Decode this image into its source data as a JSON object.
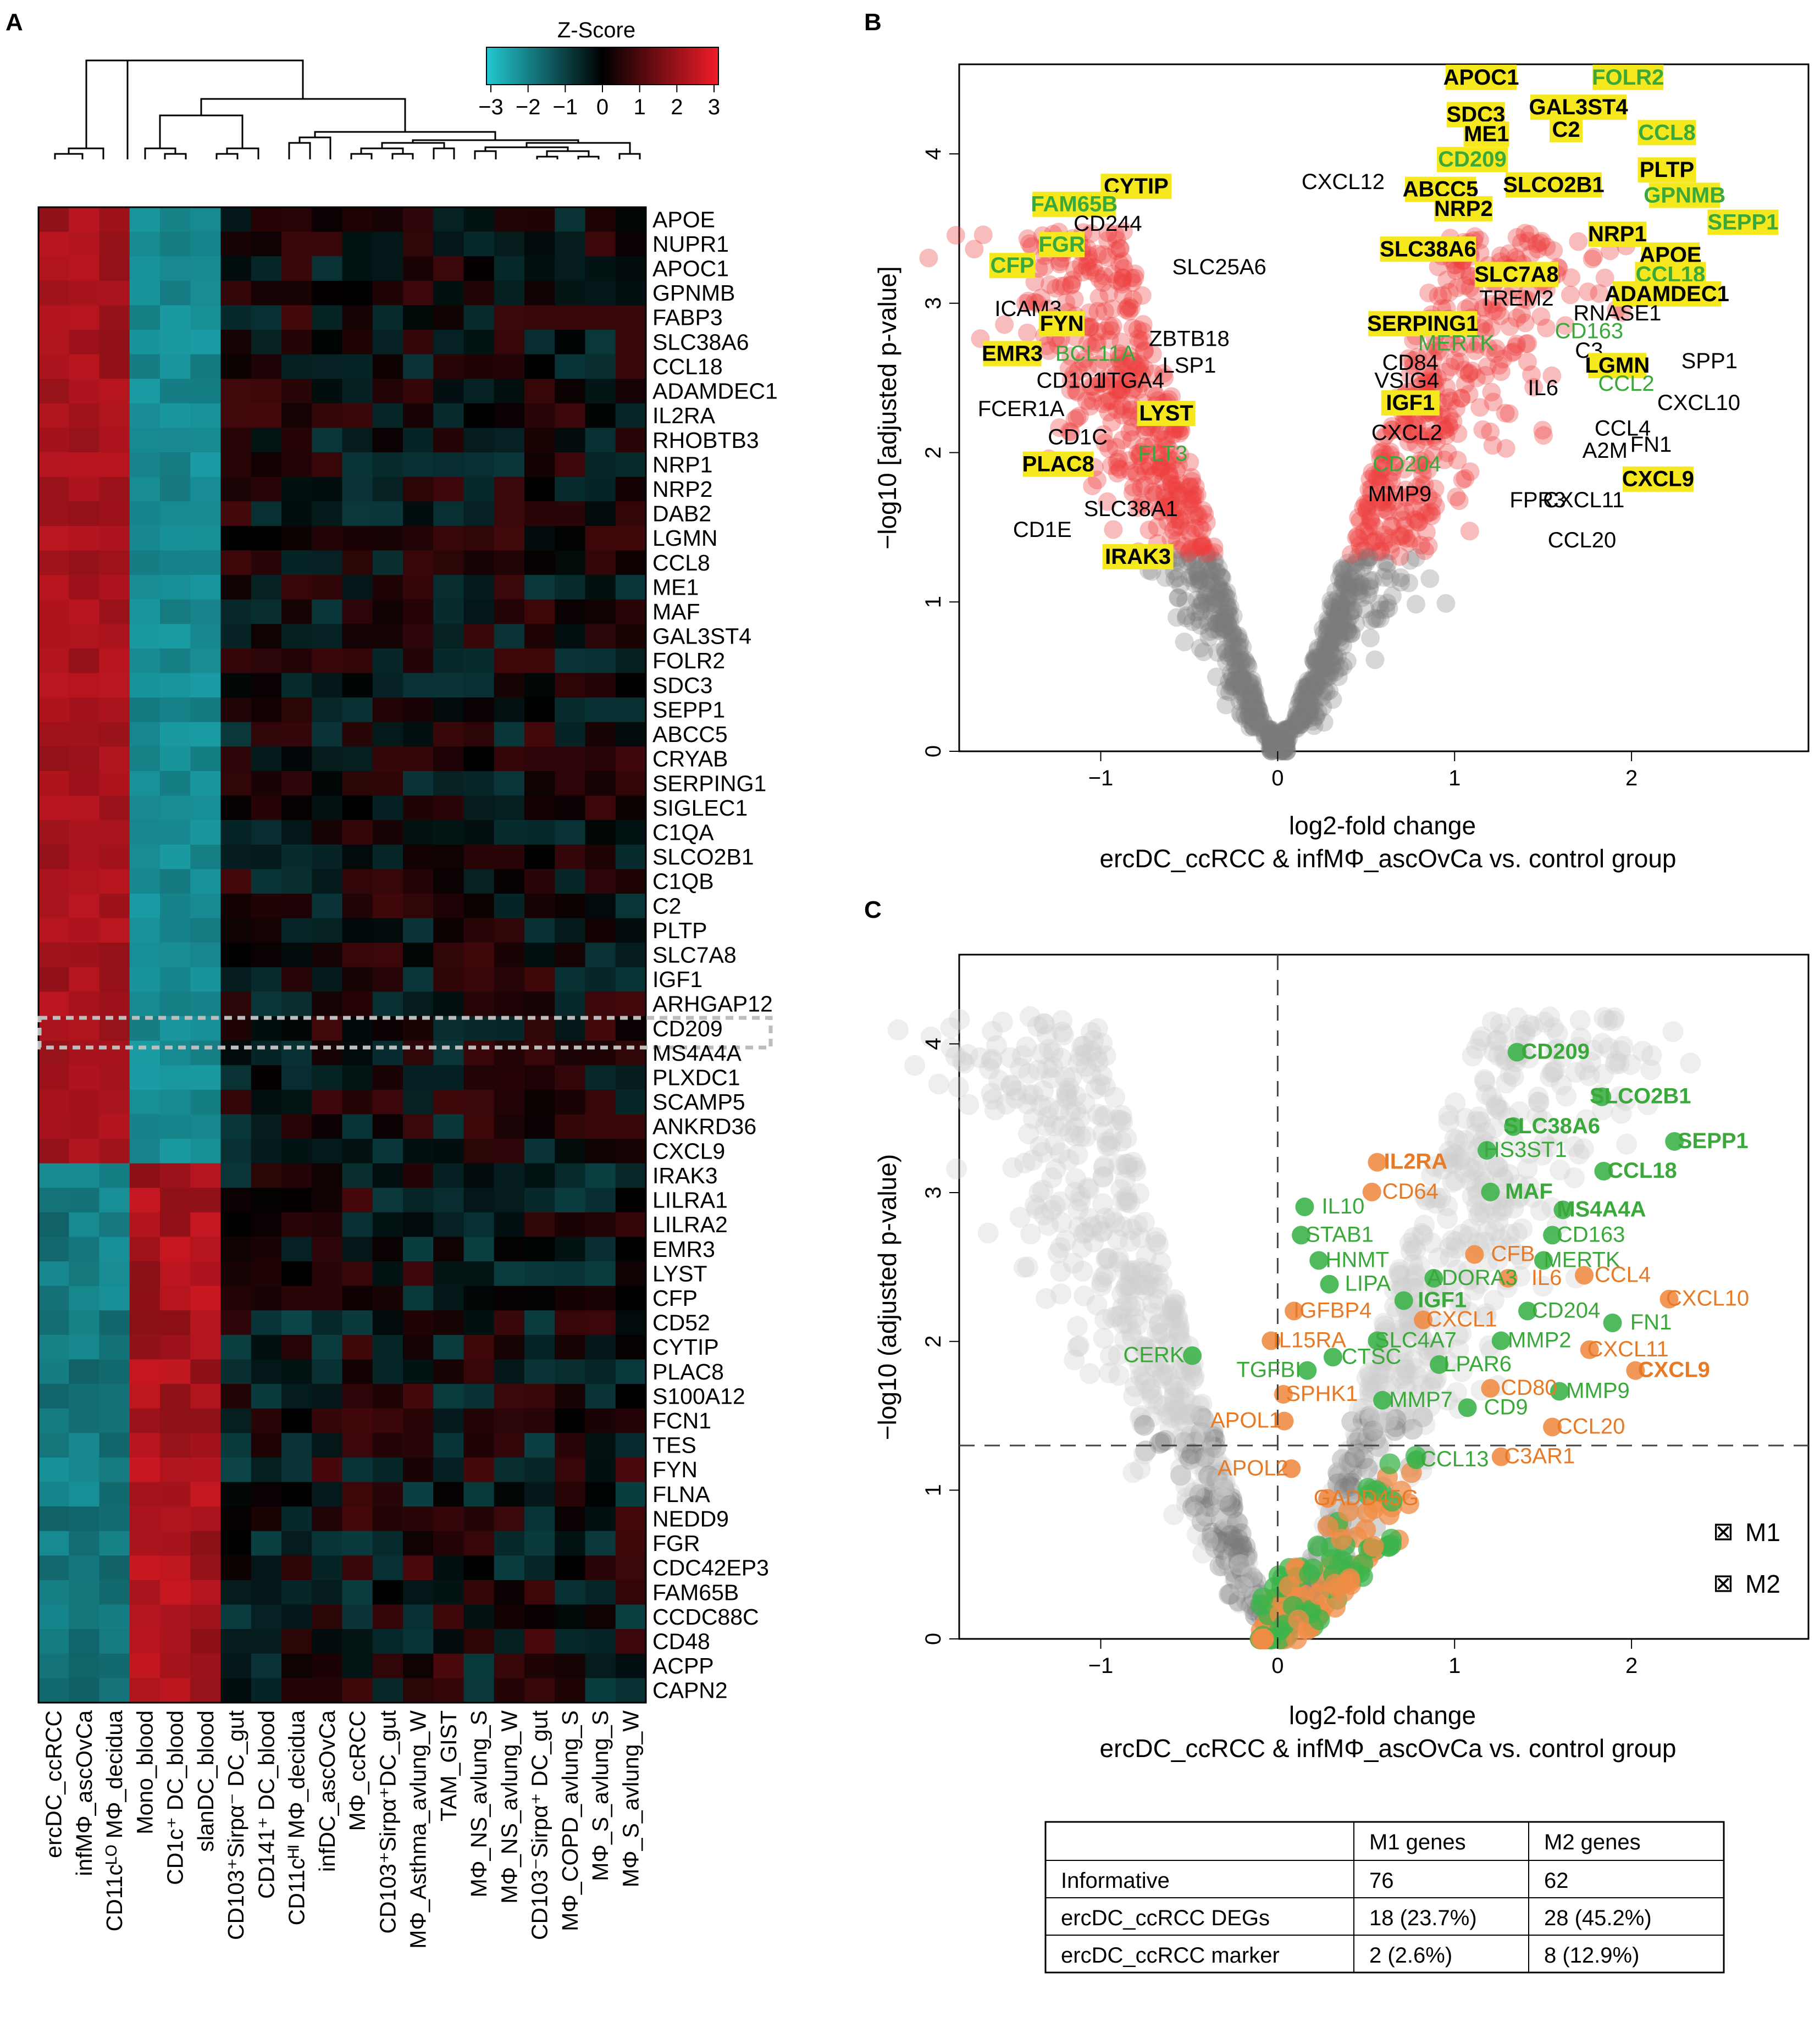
{
  "panels": {
    "a": "A",
    "b": "B",
    "c": "C"
  },
  "colors": {
    "low": "#22c8d2",
    "mid": "#000000",
    "high": "#f01c28",
    "sig": "#ee4040",
    "nonsig": "#7a7a7a",
    "m1": "#f08c46",
    "m2": "#3cb44b",
    "yellow": "#f5e81e",
    "green_text": "#3aa83a",
    "orange_text": "#e87a26"
  },
  "chart_data": [
    {
      "type": "heatmap",
      "title": "Z-Score",
      "colorbar_ticks": [
        "−3",
        "−2",
        "−1",
        "0",
        "1",
        "2",
        "3"
      ],
      "zlim": [
        -3,
        3
      ],
      "rows": [
        "APOE",
        "NUPR1",
        "APOC1",
        "GPNMB",
        "FABP3",
        "SLC38A6",
        "CCL18",
        "ADAMDEC1",
        "IL2RA",
        "RHOBTB3",
        "NRP1",
        "NRP2",
        "DAB2",
        "LGMN",
        "CCL8",
        "ME1",
        "MAF",
        "GAL3ST4",
        "FOLR2",
        "SDC3",
        "SEPP1",
        "ABCC5",
        "CRYAB",
        "SERPING1",
        "SIGLEC1",
        "C1QA",
        "SLCO2B1",
        "C1QB",
        "C2",
        "PLTP",
        "SLC7A8",
        "IGF1",
        "ARHGAP12",
        "CD209",
        "MS4A4A",
        "PLXDC1",
        "SCAMP5",
        "ANKRD36",
        "CXCL9",
        "IRAK3",
        "LILRA1",
        "LILRA2",
        "EMR3",
        "LYST",
        "CFP",
        "CD52",
        "CYTIP",
        "PLAC8",
        "S100A12",
        "FCN1",
        "TES",
        "FYN",
        "FLNA",
        "NEDD9",
        "FGR",
        "CDC42EP3",
        "FAM65B",
        "CCDC88C",
        "CD48",
        "ACPP",
        "CAPN2"
      ],
      "columns": [
        "ercDC_ccRCC",
        "infMΦ_ascOvCa",
        "CD11cᴸᴼ MΦ_decidua",
        "Mono_blood",
        "CD1c⁺ DC_blood",
        "slanDC_blood",
        "CD103⁺Sirpα⁻ DC_gut",
        "CD141⁺ DC_blood",
        "CD11cᴴᴵ MΦ_decidua",
        "infDC_ascOvCa",
        "MΦ_ccRCC",
        "CD103⁺Sirpα⁺DC_gut",
        "MΦ_Asthma_avlung_W",
        "TAM_GIST",
        "MΦ_NS_avlung_S",
        "MΦ_NS_avlung_W",
        "CD103⁻Sirpα⁺ DC_gut",
        "MΦ_COPD_avlung_S",
        "MΦ_S_avlung_S",
        "MΦ_S_avlung_W"
      ],
      "highlighted_row": "CD209",
      "row_groups": [
        {
          "rows": [
            "APOE",
            "CXCL9"
          ],
          "pattern": "high in first three columns"
        },
        {
          "rows": [
            "IRAK3",
            "CAPN2"
          ],
          "pattern": "high in monocyte/DC blood columns"
        }
      ]
    },
    {
      "type": "scatter",
      "title": "",
      "xlabel": "log2-fold change",
      "xlabel2": "ercDC_ccRCC & infMΦ_ascOvCa vs. control group",
      "ylabel": "−log10 [adjusted p-value]",
      "xlim": [
        -1.8,
        3.0
      ],
      "ylim": [
        0,
        4.6
      ],
      "xticks": [
        "−1",
        "0",
        "1",
        "2"
      ],
      "yticks": [
        "0",
        "1",
        "2",
        "3",
        "4"
      ],
      "significance_threshold": 1.3,
      "labels": [
        {
          "text": "APOC1",
          "x": 1.15,
          "y": 4.45,
          "style": "yellow"
        },
        {
          "text": "FOLR2",
          "x": 1.98,
          "y": 4.45,
          "style": "yellow-green"
        },
        {
          "text": "SDC3",
          "x": 1.12,
          "y": 4.2,
          "style": "yellow"
        },
        {
          "text": "GAL3ST4",
          "x": 1.7,
          "y": 4.25,
          "style": "yellow"
        },
        {
          "text": "ME1",
          "x": 1.18,
          "y": 4.07,
          "style": "yellow"
        },
        {
          "text": "C2",
          "x": 1.63,
          "y": 4.1,
          "style": "yellow"
        },
        {
          "text": "CCL8",
          "x": 2.2,
          "y": 4.08,
          "style": "yellow-green"
        },
        {
          "text": "CD209",
          "x": 1.1,
          "y": 3.9,
          "style": "yellow-green"
        },
        {
          "text": "PLTP",
          "x": 2.2,
          "y": 3.83,
          "style": "yellow"
        },
        {
          "text": "CXCL12",
          "x": 0.37,
          "y": 3.75,
          "style": "plain"
        },
        {
          "text": "ABCC5",
          "x": 0.92,
          "y": 3.7,
          "style": "yellow"
        },
        {
          "text": "SLCO2B1",
          "x": 1.56,
          "y": 3.73,
          "style": "yellow"
        },
        {
          "text": "GPNMB",
          "x": 2.3,
          "y": 3.66,
          "style": "yellow-green"
        },
        {
          "text": "NRP2",
          "x": 1.05,
          "y": 3.57,
          "style": "yellow"
        },
        {
          "text": "SEPP1",
          "x": 2.63,
          "y": 3.48,
          "style": "yellow-green"
        },
        {
          "text": "NRP1",
          "x": 1.92,
          "y": 3.4,
          "style": "yellow"
        },
        {
          "text": "SLC38A6",
          "x": 0.85,
          "y": 3.3,
          "style": "yellow"
        },
        {
          "text": "APOE",
          "x": 2.22,
          "y": 3.26,
          "style": "yellow"
        },
        {
          "text": "CCL18",
          "x": 2.22,
          "y": 3.13,
          "style": "yellow-green"
        },
        {
          "text": "SLC7A8",
          "x": 1.35,
          "y": 3.13,
          "style": "yellow"
        },
        {
          "text": "ADAMDEC1",
          "x": 2.2,
          "y": 3.0,
          "style": "yellow"
        },
        {
          "text": "TREM2",
          "x": 1.35,
          "y": 2.97,
          "style": "plain"
        },
        {
          "text": "RNASE1",
          "x": 1.92,
          "y": 2.87,
          "style": "plain"
        },
        {
          "text": "SERPING1",
          "x": 0.82,
          "y": 2.8,
          "style": "yellow"
        },
        {
          "text": "CD163",
          "x": 1.76,
          "y": 2.75,
          "style": "green"
        },
        {
          "text": "MERTK",
          "x": 1.01,
          "y": 2.67,
          "style": "green"
        },
        {
          "text": "C3",
          "x": 1.76,
          "y": 2.62,
          "style": "plain"
        },
        {
          "text": "CD84",
          "x": 0.75,
          "y": 2.54,
          "style": "plain"
        },
        {
          "text": "LGMN",
          "x": 1.92,
          "y": 2.52,
          "style": "yellow"
        },
        {
          "text": "SPP1",
          "x": 2.44,
          "y": 2.55,
          "style": "plain"
        },
        {
          "text": "VSIG4",
          "x": 0.73,
          "y": 2.42,
          "style": "plain"
        },
        {
          "text": "CCL2",
          "x": 1.97,
          "y": 2.4,
          "style": "green"
        },
        {
          "text": "IL6",
          "x": 1.5,
          "y": 2.37,
          "style": "plain"
        },
        {
          "text": "IGF1",
          "x": 0.75,
          "y": 2.27,
          "style": "yellow"
        },
        {
          "text": "CXCL10",
          "x": 2.38,
          "y": 2.27,
          "style": "plain"
        },
        {
          "text": "CXCL2",
          "x": 0.73,
          "y": 2.07,
          "style": "plain"
        },
        {
          "text": "CCL4",
          "x": 1.95,
          "y": 2.1,
          "style": "plain"
        },
        {
          "text": "FN1",
          "x": 2.11,
          "y": 1.99,
          "style": "plain"
        },
        {
          "text": "A2M",
          "x": 1.85,
          "y": 1.95,
          "style": "plain"
        },
        {
          "text": "CD204",
          "x": 0.73,
          "y": 1.86,
          "style": "green"
        },
        {
          "text": "MMP9",
          "x": 0.69,
          "y": 1.66,
          "style": "plain"
        },
        {
          "text": "FPR3",
          "x": 1.47,
          "y": 1.62,
          "style": "plain"
        },
        {
          "text": "CXCL11",
          "x": 1.73,
          "y": 1.62,
          "style": "plain"
        },
        {
          "text": "CXCL9",
          "x": 2.15,
          "y": 1.76,
          "style": "yellow"
        },
        {
          "text": "CCL20",
          "x": 1.72,
          "y": 1.35,
          "style": "plain"
        },
        {
          "text": "CYTIP",
          "x": -0.8,
          "y": 3.72,
          "style": "yellow"
        },
        {
          "text": "FAM65B",
          "x": -1.15,
          "y": 3.6,
          "style": "yellow-green"
        },
        {
          "text": "CD244",
          "x": -0.96,
          "y": 3.47,
          "style": "plain"
        },
        {
          "text": "FGR",
          "x": -1.22,
          "y": 3.33,
          "style": "yellow-green"
        },
        {
          "text": "SLC25A6",
          "x": -0.33,
          "y": 3.18,
          "style": "plain"
        },
        {
          "text": "CFP",
          "x": -1.5,
          "y": 3.19,
          "style": "yellow-green"
        },
        {
          "text": "ICAM3",
          "x": -1.41,
          "y": 2.9,
          "style": "plain"
        },
        {
          "text": "FYN",
          "x": -1.22,
          "y": 2.8,
          "style": "yellow"
        },
        {
          "text": "ZBTB18",
          "x": -0.5,
          "y": 2.7,
          "style": "plain"
        },
        {
          "text": "EMR3",
          "x": -1.5,
          "y": 2.6,
          "style": "yellow"
        },
        {
          "text": "BCL11A",
          "x": -1.03,
          "y": 2.6,
          "style": "green"
        },
        {
          "text": "LSP1",
          "x": -0.5,
          "y": 2.52,
          "style": "plain"
        },
        {
          "text": "CD101",
          "x": -1.17,
          "y": 2.42,
          "style": "plain"
        },
        {
          "text": "ITGA4",
          "x": -0.82,
          "y": 2.42,
          "style": "plain"
        },
        {
          "text": "FCER1A",
          "x": -1.45,
          "y": 2.23,
          "style": "plain"
        },
        {
          "text": "LYST",
          "x": -0.63,
          "y": 2.2,
          "style": "yellow"
        },
        {
          "text": "CD1C",
          "x": -1.13,
          "y": 2.04,
          "style": "plain"
        },
        {
          "text": "FLT3",
          "x": -0.65,
          "y": 1.93,
          "style": "green"
        },
        {
          "text": "PLAC8",
          "x": -1.24,
          "y": 1.86,
          "style": "yellow"
        },
        {
          "text": "SLC38A1",
          "x": -0.83,
          "y": 1.56,
          "style": "plain"
        },
        {
          "text": "CD1E",
          "x": -1.33,
          "y": 1.42,
          "style": "plain"
        },
        {
          "text": "IRAK3",
          "x": -0.79,
          "y": 1.24,
          "style": "yellow"
        }
      ]
    },
    {
      "type": "scatter",
      "title": "",
      "xlabel": "log2-fold change",
      "xlabel2": "ercDC_ccRCC & infMΦ_ascOvCa vs. control group",
      "ylabel": "−log10 (adjusted p-value)",
      "xlim": [
        -1.8,
        3.0
      ],
      "ylim": [
        0,
        4.6
      ],
      "xticks": [
        "−1",
        "0",
        "1",
        "2"
      ],
      "yticks": [
        "0",
        "1",
        "2",
        "3",
        "4"
      ],
      "hline": 1.3,
      "vline": 0,
      "legend": [
        {
          "name": "M1",
          "color": "m1"
        },
        {
          "name": "M2",
          "color": "m2"
        }
      ],
      "legend_symbol": "⊠",
      "labels": [
        {
          "text": "CD209",
          "x": 1.57,
          "y": 3.9,
          "group": "M2",
          "bold": true
        },
        {
          "text": "SLCO2B1",
          "x": 2.05,
          "y": 3.6,
          "group": "M2",
          "bold": true
        },
        {
          "text": "SLC38A6",
          "x": 1.55,
          "y": 3.4,
          "group": "M2",
          "bold": true
        },
        {
          "text": "SEPP1",
          "x": 2.46,
          "y": 3.3,
          "group": "M2",
          "bold": true
        },
        {
          "text": "HS3ST1",
          "x": 1.4,
          "y": 3.24,
          "group": "M2",
          "bold": false
        },
        {
          "text": "IL2RA",
          "x": 0.78,
          "y": 3.16,
          "group": "M1",
          "bold": true
        },
        {
          "text": "CCL18",
          "x": 2.06,
          "y": 3.1,
          "group": "M2",
          "bold": true
        },
        {
          "text": "CD64",
          "x": 0.75,
          "y": 2.96,
          "group": "M1",
          "bold": false
        },
        {
          "text": "MAF",
          "x": 1.42,
          "y": 2.96,
          "group": "M2",
          "bold": true
        },
        {
          "text": "IL10",
          "x": 0.37,
          "y": 2.86,
          "group": "M2",
          "bold": false
        },
        {
          "text": "MS4A4A",
          "x": 1.83,
          "y": 2.84,
          "group": "M2",
          "bold": true
        },
        {
          "text": "STAB1",
          "x": 0.35,
          "y": 2.67,
          "group": "M2",
          "bold": false
        },
        {
          "text": "CD163",
          "x": 1.77,
          "y": 2.67,
          "group": "M2",
          "bold": false
        },
        {
          "text": "CFB",
          "x": 1.33,
          "y": 2.54,
          "group": "M1",
          "bold": false
        },
        {
          "text": "HNMT",
          "x": 0.45,
          "y": 2.5,
          "group": "M2",
          "bold": false
        },
        {
          "text": "MERTK",
          "x": 1.72,
          "y": 2.5,
          "group": "M2",
          "bold": false
        },
        {
          "text": "ADORA3",
          "x": 1.1,
          "y": 2.38,
          "group": "M2",
          "bold": false
        },
        {
          "text": "IL6",
          "x": 1.52,
          "y": 2.38,
          "group": "M1",
          "bold": false
        },
        {
          "text": "CCL4",
          "x": 1.95,
          "y": 2.4,
          "group": "M1",
          "bold": false
        },
        {
          "text": "LIPA",
          "x": 0.51,
          "y": 2.34,
          "group": "M2",
          "bold": false
        },
        {
          "text": "IGF1",
          "x": 0.93,
          "y": 2.23,
          "group": "M2",
          "bold": true
        },
        {
          "text": "CXCL10",
          "x": 2.43,
          "y": 2.24,
          "group": "M1",
          "bold": false
        },
        {
          "text": "IGFBP4",
          "x": 0.31,
          "y": 2.16,
          "group": "M1",
          "bold": false
        },
        {
          "text": "CD204",
          "x": 1.63,
          "y": 2.16,
          "group": "M2",
          "bold": false
        },
        {
          "text": "FN1",
          "x": 2.11,
          "y": 2.08,
          "group": "M2",
          "bold": false
        },
        {
          "text": "CXCL1",
          "x": 1.04,
          "y": 2.1,
          "group": "M1",
          "bold": false
        },
        {
          "text": "IL15RA",
          "x": 0.18,
          "y": 1.96,
          "group": "M1",
          "bold": false
        },
        {
          "text": "SLC4A7",
          "x": 0.78,
          "y": 1.96,
          "group": "M2",
          "bold": false
        },
        {
          "text": "MMP2",
          "x": 1.48,
          "y": 1.96,
          "group": "M2",
          "bold": false
        },
        {
          "text": "CTSC",
          "x": 0.53,
          "y": 1.85,
          "group": "M2",
          "bold": false
        },
        {
          "text": "CXCL11",
          "x": 1.98,
          "y": 1.9,
          "group": "M1",
          "bold": false
        },
        {
          "text": "TGFBI",
          "x": -0.05,
          "y": 1.76,
          "group": "M2",
          "bold": false
        },
        {
          "text": "LPAR6",
          "x": 1.13,
          "y": 1.8,
          "group": "M2",
          "bold": false
        },
        {
          "text": "CXCL9",
          "x": 2.24,
          "y": 1.76,
          "group": "M1",
          "bold": true
        },
        {
          "text": "SPHK1",
          "x": 0.25,
          "y": 1.6,
          "group": "M1",
          "bold": false
        },
        {
          "text": "CD80",
          "x": 1.42,
          "y": 1.64,
          "group": "M1",
          "bold": false
        },
        {
          "text": "MMP7",
          "x": 0.81,
          "y": 1.56,
          "group": "M2",
          "bold": false
        },
        {
          "text": "MMP9",
          "x": 1.81,
          "y": 1.62,
          "group": "M2",
          "bold": false
        },
        {
          "text": "CD9",
          "x": 1.29,
          "y": 1.51,
          "group": "M2",
          "bold": false
        },
        {
          "text": "APOL1",
          "x": -0.18,
          "y": 1.42,
          "group": "M1",
          "bold": false
        },
        {
          "text": "CCL20",
          "x": 1.77,
          "y": 1.38,
          "group": "M1",
          "bold": false
        },
        {
          "text": "C3AR1",
          "x": 1.48,
          "y": 1.18,
          "group": "M1",
          "bold": false
        },
        {
          "text": "CCL13",
          "x": 1.0,
          "y": 1.16,
          "group": "M2",
          "bold": false
        },
        {
          "text": "APOL2",
          "x": -0.14,
          "y": 1.1,
          "group": "M1",
          "bold": false
        },
        {
          "text": "GADD45G",
          "x": 0.5,
          "y": 0.9,
          "group": "M1",
          "bold": false
        },
        {
          "text": "CERK",
          "x": -0.7,
          "y": 1.86,
          "group": "M2",
          "bold": false
        }
      ]
    }
  ],
  "table": {
    "headers": [
      "",
      "M1 genes",
      "M2 genes"
    ],
    "rows": [
      [
        "Informative",
        "76",
        "62"
      ],
      [
        "ercDC_ccRCC DEGs",
        "18 (23.7%)",
        "28 (45.2%)"
      ],
      [
        "ercDC_ccRCC marker",
        "2 (2.6%)",
        "8 (12.9%)"
      ]
    ]
  }
}
